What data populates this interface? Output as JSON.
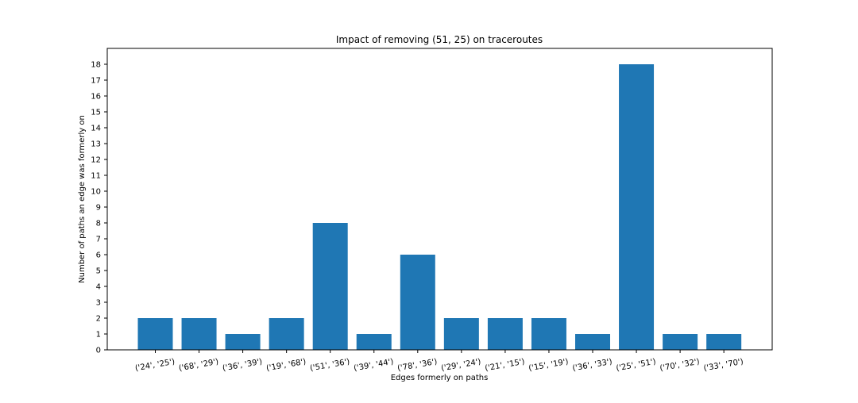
{
  "chart_data": {
    "type": "bar",
    "title": "Impact of removing (51, 25) on traceroutes",
    "xlabel": "Edges formerly on paths",
    "ylabel": "Number of paths an edge was formerly on",
    "categories": [
      "('24', '25')",
      "('68', '29')",
      "('36', '39')",
      "('19', '68')",
      "('51', '36')",
      "('39', '44')",
      "('78', '36')",
      "('29', '24')",
      "('21', '15')",
      "('15', '19')",
      "('36', '33')",
      "('25', '51')",
      "('70', '32')",
      "('33', '70')"
    ],
    "values": [
      2,
      2,
      1,
      2,
      8,
      1,
      6,
      2,
      2,
      2,
      1,
      18,
      1,
      1
    ],
    "ylim": [
      0,
      19
    ],
    "yticks": [
      0,
      1,
      2,
      3,
      4,
      5,
      6,
      7,
      8,
      9,
      10,
      11,
      12,
      13,
      14,
      15,
      16,
      17,
      18
    ],
    "grid": false,
    "bar_color": "#1f77b4"
  }
}
